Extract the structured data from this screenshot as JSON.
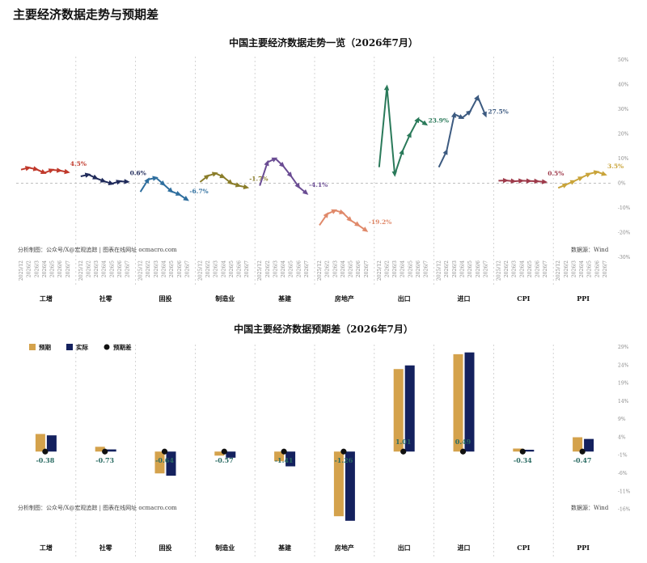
{
  "page_title": "主要经济数据走势与预期差",
  "note_left": "分析制图：公众号/X@宏观追踪 | 图表在线网址 ocmacro.com",
  "note_right": "数据源：Wind",
  "colors": {
    "工增": "#c0392b",
    "社零": "#1f2a5a",
    "固投": "#2e6e9e",
    "制造业": "#8a7d2a",
    "基建": "#6a4c93",
    "房地产": "#e0896a",
    "出口": "#2a7a5a",
    "进口": "#3c5a80",
    "CPI": "#9e3a4a",
    "PPI": "#c9a43a",
    "expected": "#d4a24c",
    "actual": "#14215e",
    "diff_dot": "#111111"
  },
  "chart_data": [
    {
      "type": "line",
      "title": "中国主要经济数据走势一览（2026年7月）",
      "x": [
        "2025/12",
        "2026/2",
        "2026/3",
        "2026/4",
        "2026/5",
        "2026/6",
        "2026/7"
      ],
      "y_ticks": [
        "50%",
        "40%",
        "30%",
        "20%",
        "10%",
        "0%",
        "-10%",
        "-20%",
        "-30%"
      ],
      "ylim": [
        -30,
        50
      ],
      "series": [
        {
          "name": "工增",
          "values": [
            5.5,
            6.3,
            5.6,
            4.2,
            5.4,
            5.1,
            4.5
          ],
          "end_label": "4.5%"
        },
        {
          "name": "社零",
          "values": [
            2.8,
            3.5,
            2.0,
            0.8,
            -0.2,
            0.8,
            0.6
          ],
          "end_label": "0.6%"
        },
        {
          "name": "固投",
          "values": [
            -3.5,
            1.5,
            2.2,
            -0.5,
            -3.3,
            -4.6,
            -6.7
          ],
          "end_label": "-6.7%"
        },
        {
          "name": "制造业",
          "values": [
            0.5,
            3.0,
            4.0,
            2.5,
            0.0,
            -1.0,
            -1.7
          ],
          "end_label": "-1.7%"
        },
        {
          "name": "基建",
          "values": [
            -1.0,
            8.5,
            10.0,
            7.0,
            3.0,
            -1.5,
            -4.1
          ],
          "end_label": "-4.1%"
        },
        {
          "name": "房地产",
          "values": [
            -17.0,
            -12.5,
            -11.0,
            -12.0,
            -15.0,
            -17.0,
            -19.2
          ],
          "end_label": "-19.2%"
        },
        {
          "name": "出口",
          "values": [
            6.5,
            39.0,
            3.5,
            13.0,
            20.0,
            26.0,
            23.9
          ],
          "end_label": "23.9%"
        },
        {
          "name": "进口",
          "values": [
            6.5,
            13.0,
            28.0,
            26.5,
            29.0,
            35.0,
            27.5
          ],
          "end_label": "27.5%"
        },
        {
          "name": "CPI",
          "values": [
            1.0,
            1.1,
            0.8,
            1.0,
            0.9,
            0.8,
            0.5
          ],
          "end_label": "0.5%"
        },
        {
          "name": "PPI",
          "values": [
            -1.9,
            -0.6,
            0.8,
            2.3,
            3.8,
            4.6,
            3.5
          ],
          "end_label": "3.5%"
        }
      ]
    },
    {
      "type": "bar",
      "title": "中国主要经济数据预期差（2026年7月）",
      "legend": [
        "预期",
        "实际",
        "预期差"
      ],
      "categories": [
        "工增",
        "社零",
        "固投",
        "制造业",
        "基建",
        "房地产",
        "出口",
        "进口",
        "CPI",
        "PPI"
      ],
      "y_ticks": [
        "29%",
        "24%",
        "19%",
        "14%",
        "9%",
        "4%",
        "-1%",
        "-6%",
        "-11%",
        "-16%"
      ],
      "ylim": [
        -17,
        29
      ],
      "series": [
        {
          "name": "预期",
          "values": [
            4.88,
            1.33,
            -6.06,
            -1.13,
            -2.69,
            -17.94,
            22.89,
            27.01,
            0.84,
            3.97
          ]
        },
        {
          "name": "实际",
          "values": [
            4.5,
            0.6,
            -6.7,
            -1.7,
            -4.1,
            -19.2,
            23.9,
            27.5,
            0.5,
            3.5
          ]
        },
        {
          "name": "预期差",
          "values": [
            -0.38,
            -0.73,
            -0.64,
            -0.57,
            -1.41,
            -1.26,
            1.01,
            0.49,
            -0.34,
            -0.47
          ],
          "labels": [
            "-0.38",
            "-0.73",
            "-0.64",
            "-0.57",
            "-1.41",
            "-1.26",
            "1.01",
            "0.49",
            "-0.34",
            "-0.47"
          ]
        }
      ]
    }
  ]
}
